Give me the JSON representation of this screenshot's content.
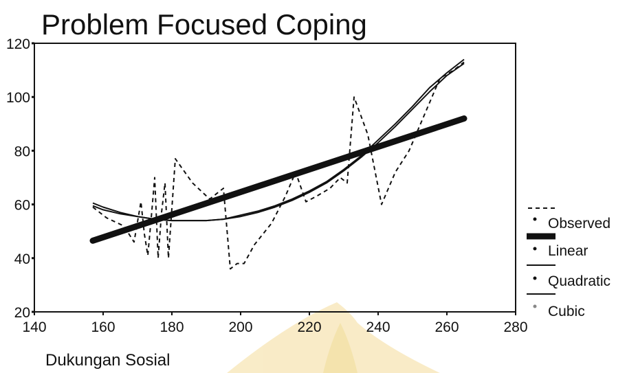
{
  "chart_data": {
    "type": "line",
    "title": "Problem Focused Coping",
    "xlabel": "Dukungan Sosial",
    "ylabel": "",
    "xlim": [
      140,
      280
    ],
    "ylim": [
      20,
      120
    ],
    "xticks": [
      "140",
      "160",
      "180",
      "200",
      "220",
      "240",
      "260",
      "280"
    ],
    "yticks": [
      "20",
      "40",
      "60",
      "80",
      "100",
      "120"
    ],
    "grid": false,
    "legend_position": "right",
    "series": [
      {
        "name": "Observed",
        "style": "dashed",
        "x": [
          157,
          161,
          166,
          169,
          171,
          172,
          173,
          174,
          175,
          176,
          177,
          178,
          179,
          181,
          186,
          191,
          195,
          197,
          199,
          201,
          204,
          209,
          213,
          216,
          219,
          222,
          226,
          229,
          231,
          233,
          237,
          241,
          245,
          249,
          254,
          258,
          262,
          265
        ],
        "y": [
          59,
          55,
          52,
          46,
          61,
          49,
          41,
          55,
          70,
          40,
          57,
          68,
          40,
          77,
          68,
          62,
          66,
          36,
          38,
          38,
          45,
          53,
          63,
          72,
          61,
          63,
          66,
          70,
          68,
          100,
          86,
          60,
          72,
          80,
          95,
          107,
          110,
          113
        ]
      },
      {
        "name": "Linear",
        "style": "thick",
        "x": [
          157,
          265
        ],
        "y": [
          46.5,
          92
        ]
      },
      {
        "name": "Quadratic",
        "style": "thin",
        "x": [
          157,
          160,
          165,
          170,
          175,
          180,
          185,
          190,
          195,
          200,
          205,
          210,
          215,
          220,
          225,
          230,
          235,
          240,
          245,
          250,
          255,
          260,
          265
        ],
        "y": [
          60.5,
          59,
          57,
          55.5,
          54.5,
          54,
          54,
          54,
          54.5,
          56,
          57.5,
          59.5,
          62,
          65,
          68.5,
          73,
          78,
          84,
          90,
          96.5,
          103.5,
          109,
          114
        ]
      },
      {
        "name": "Cubic",
        "style": "thin",
        "x": [
          157,
          160,
          165,
          170,
          175,
          180,
          185,
          190,
          195,
          200,
          205,
          210,
          215,
          220,
          225,
          230,
          235,
          240,
          245,
          250,
          255,
          260,
          265
        ],
        "y": [
          59.5,
          58,
          56.5,
          55.5,
          54.5,
          54,
          54,
          54,
          54.5,
          55.5,
          57,
          59,
          61.5,
          64.5,
          68,
          72.5,
          77.5,
          83,
          89,
          95.5,
          102,
          108,
          112.5
        ]
      }
    ],
    "colors": {
      "line": "#111111",
      "background": "#ffffff",
      "watermark": "#e8c24c"
    }
  }
}
